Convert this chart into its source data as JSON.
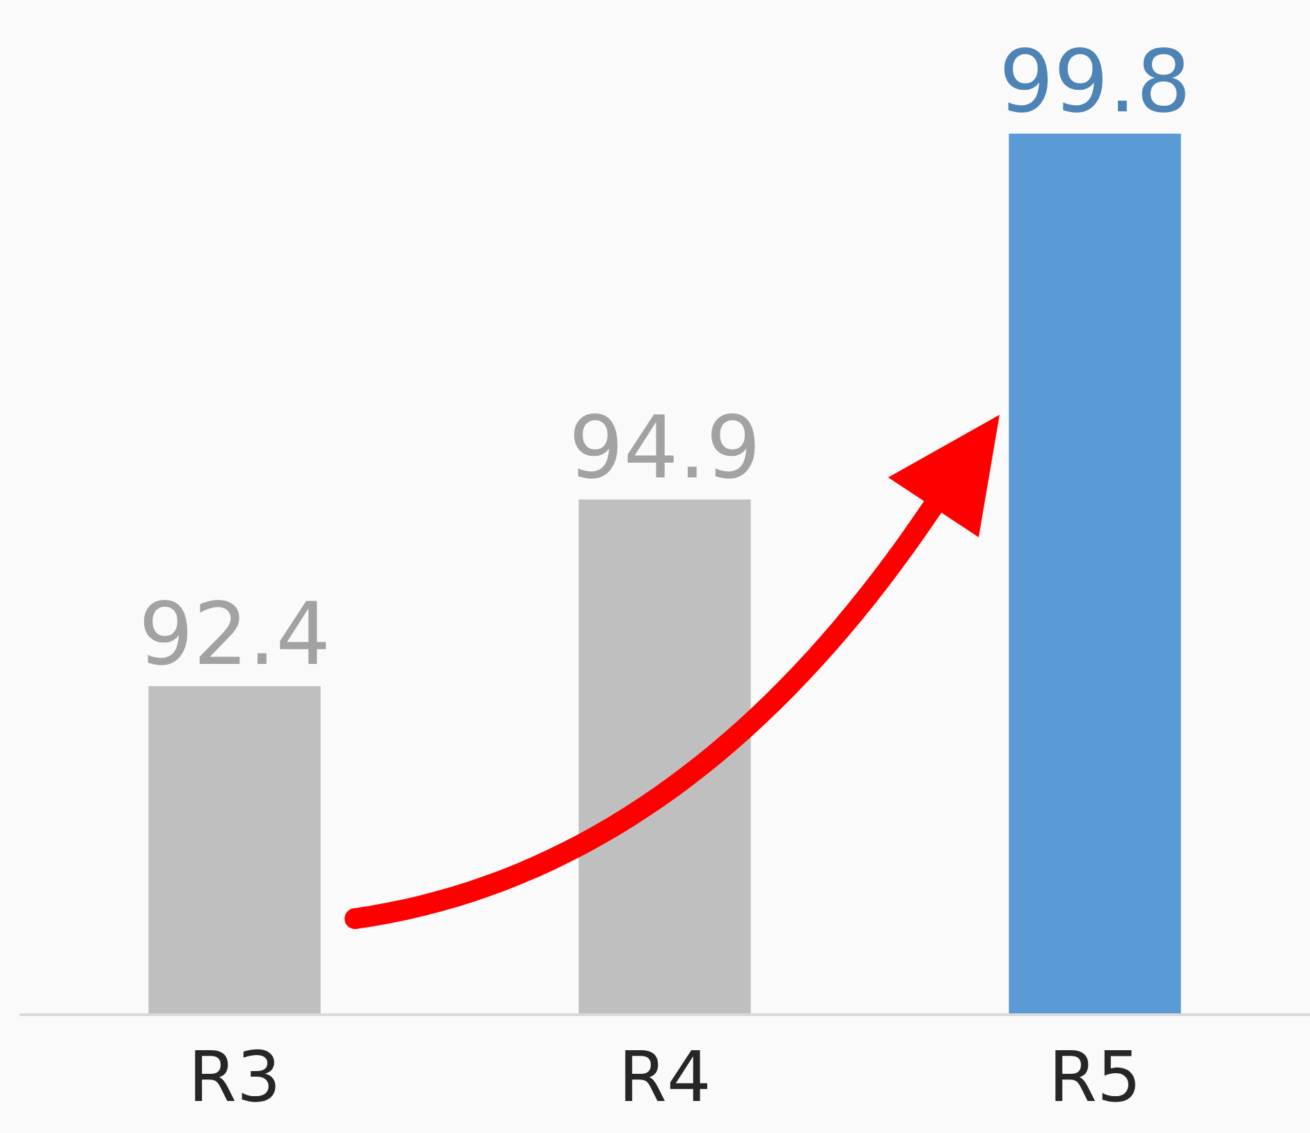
{
  "chart_data": {
    "type": "bar",
    "categories": [
      "R3",
      "R4",
      "R5"
    ],
    "values": [
      92.4,
      94.9,
      99.8
    ],
    "colors": [
      "#bfbfbf",
      "#bfbfbf",
      "#5b9bd5"
    ],
    "ylim": [
      88,
      99.8
    ],
    "tick_labels": "x",
    "data_labels": true
  }
}
